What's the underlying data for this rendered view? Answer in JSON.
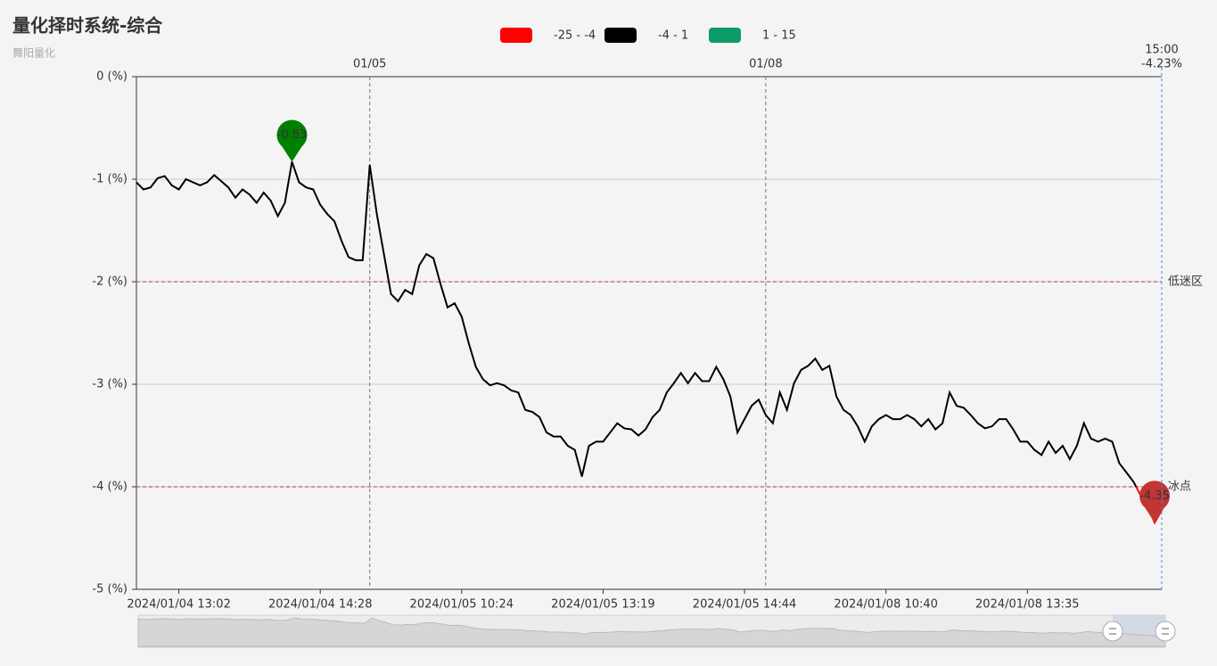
{
  "chart_data": {
    "type": "line",
    "title": "量化择时系统-综合",
    "subtitle": "舞阳量化",
    "pieces": [
      {
        "label": "-25 - -4",
        "min": -25,
        "max": -4,
        "color": "#ff0000"
      },
      {
        "label": "-4 - 1",
        "min": -4,
        "max": 1,
        "color": "#000000"
      },
      {
        "label": "1 - 15",
        "min": 1,
        "max": 15,
        "color": "#0c9a66"
      }
    ],
    "categories": [
      null,
      null,
      null,
      null,
      null,
      null,
      "2024/01/04 13:02",
      null,
      null,
      null,
      null,
      null,
      null,
      null,
      null,
      null,
      null,
      null,
      null,
      null,
      null,
      null,
      null,
      null,
      null,
      null,
      "2024/01/04 14:28",
      null,
      null,
      null,
      null,
      null,
      null,
      null,
      null,
      null,
      null,
      null,
      null,
      null,
      null,
      null,
      null,
      null,
      null,
      null,
      "2024/01/05 10:24",
      null,
      null,
      null,
      null,
      null,
      null,
      null,
      null,
      null,
      null,
      null,
      null,
      null,
      null,
      null,
      null,
      null,
      null,
      null,
      "2024/01/05 13:19",
      null,
      null,
      null,
      null,
      null,
      null,
      null,
      null,
      null,
      null,
      null,
      null,
      null,
      null,
      null,
      null,
      null,
      null,
      null,
      "2024/01/05 14:44",
      null,
      null,
      null,
      null,
      null,
      null,
      null,
      null,
      null,
      null,
      null,
      null,
      null,
      null,
      null,
      null,
      null,
      null,
      null,
      "2024/01/08 10:40",
      null,
      null,
      null,
      null,
      null,
      null,
      null,
      null,
      null,
      null,
      null,
      null,
      null,
      null,
      null,
      null,
      null,
      null,
      null,
      "2024/01/08 13:35",
      null,
      null,
      null,
      null,
      null,
      null,
      null,
      null,
      null,
      null,
      null,
      null,
      null,
      null,
      null,
      null,
      null,
      null,
      null
    ],
    "top_categories": [
      null,
      null,
      null,
      null,
      null,
      null,
      null,
      null,
      null,
      null,
      null,
      null,
      null,
      null,
      null,
      null,
      null,
      null,
      null,
      null,
      null,
      null,
      null,
      null,
      null,
      null,
      null,
      null,
      null,
      null,
      null,
      null,
      null,
      "01/05",
      null,
      null,
      null,
      null,
      null,
      null,
      null,
      null,
      null,
      null,
      null,
      null,
      null,
      null,
      null,
      null,
      null,
      null,
      null,
      null,
      null,
      null,
      null,
      null,
      null,
      null,
      null,
      null,
      null,
      null,
      null,
      null,
      null,
      null,
      null,
      null,
      null,
      null,
      null,
      null,
      null,
      null,
      null,
      null,
      null,
      null,
      null,
      null,
      null,
      null,
      null,
      null,
      null,
      null,
      null,
      "01/08",
      null,
      null,
      null,
      null,
      null,
      null,
      null,
      null,
      null,
      null,
      null,
      null,
      null,
      null,
      null,
      null,
      null,
      null,
      null,
      null,
      null,
      null,
      null,
      null,
      null,
      null,
      null,
      null,
      null,
      null,
      null,
      null,
      null,
      null,
      null,
      null,
      null,
      null,
      null,
      null,
      null,
      null,
      null,
      null,
      null,
      null,
      null,
      null,
      null,
      null,
      null,
      null,
      null,
      null,
      null,
      null
    ],
    "values": [
      -1.03,
      -1.1,
      -1.08,
      -0.99,
      -0.97,
      -1.06,
      -1.1,
      -1.0,
      -1.03,
      -1.06,
      -1.03,
      -0.96,
      -1.02,
      -1.08,
      -1.18,
      -1.1,
      -1.15,
      -1.23,
      -1.13,
      -1.21,
      -1.36,
      -1.23,
      -0.83,
      -1.03,
      -1.08,
      -1.1,
      -1.25,
      -1.34,
      -1.41,
      -1.6,
      -1.76,
      -1.79,
      -1.79,
      -0.86,
      -1.34,
      -1.73,
      -2.12,
      -2.19,
      -2.08,
      -2.12,
      -1.84,
      -1.73,
      -1.77,
      -2.02,
      -2.25,
      -2.21,
      -2.34,
      -2.6,
      -2.83,
      -2.95,
      -3.01,
      -2.99,
      -3.01,
      -3.06,
      -3.08,
      -3.25,
      -3.27,
      -3.32,
      -3.47,
      -3.51,
      -3.51,
      -3.6,
      -3.64,
      -3.9,
      -3.6,
      -3.56,
      -3.56,
      -3.47,
      -3.38,
      -3.43,
      -3.44,
      -3.5,
      -3.44,
      -3.32,
      -3.25,
      -3.08,
      -2.99,
      -2.89,
      -2.99,
      -2.89,
      -2.97,
      -2.97,
      -2.83,
      -2.95,
      -3.12,
      -3.47,
      -3.34,
      -3.21,
      -3.15,
      -3.3,
      -3.38,
      -3.08,
      -3.25,
      -2.99,
      -2.86,
      -2.82,
      -2.75,
      -2.86,
      -2.82,
      -3.12,
      -3.25,
      -3.3,
      -3.41,
      -3.56,
      -3.41,
      -3.34,
      -3.3,
      -3.34,
      -3.34,
      -3.3,
      -3.34,
      -3.41,
      -3.34,
      -3.44,
      -3.38,
      -3.08,
      -3.21,
      -3.23,
      -3.3,
      -3.38,
      -3.43,
      -3.41,
      -3.34,
      -3.34,
      -3.44,
      -3.56,
      -3.56,
      -3.64,
      -3.69,
      -3.56,
      -3.67,
      -3.6,
      -3.73,
      -3.6,
      -3.38,
      -3.53,
      -3.56,
      -3.53,
      -3.56,
      -3.77,
      -3.86,
      -3.95,
      -4.08,
      -4.19,
      -4.35,
      -4.23
    ],
    "value_labels": [
      null,
      null,
      null,
      null,
      null,
      null,
      null,
      null,
      null,
      null,
      null,
      null,
      null,
      null,
      null,
      null,
      null,
      null,
      null,
      null,
      null,
      null,
      "-0.83",
      null,
      null,
      null,
      null,
      null,
      null,
      null,
      null,
      null,
      null,
      null,
      null,
      null,
      null,
      null,
      null,
      null,
      null,
      null,
      null,
      null,
      null,
      null,
      null,
      null,
      null,
      null,
      null,
      null,
      null,
      null,
      null,
      null,
      null,
      null,
      null,
      null,
      null,
      null,
      null,
      null,
      null,
      null,
      null,
      null,
      null,
      null,
      null,
      null,
      null,
      null,
      null,
      null,
      null,
      null,
      null,
      null,
      null,
      null,
      null,
      null,
      null,
      null,
      null,
      null,
      null,
      null,
      null,
      null,
      null,
      null,
      null,
      null,
      null,
      null,
      null,
      null,
      null,
      null,
      null,
      null,
      null,
      null,
      null,
      null,
      null,
      null,
      null,
      null,
      null,
      null,
      null,
      null,
      null,
      null,
      null,
      null,
      null,
      null,
      null,
      null,
      null,
      null,
      null,
      null,
      null,
      null,
      null,
      null,
      null,
      null,
      null,
      null,
      null,
      null,
      null,
      null,
      null,
      null,
      null,
      null,
      "-4.35",
      null
    ],
    "max_marker_color": "#008000",
    "min_marker_color": "#c23531",
    "mark_lines": [
      {
        "value": -2,
        "label": "低迷区"
      },
      {
        "value": -4,
        "label": "冰点"
      }
    ],
    "pointer": {
      "time": "15:00",
      "label": "-4.23%"
    },
    "ylim": [
      -5,
      0
    ],
    "yticks": [
      {
        "value": 0,
        "label": "0 (%)"
      },
      {
        "value": -1,
        "label": "-1 (%)"
      },
      {
        "value": -2,
        "label": "-2 (%)"
      },
      {
        "value": -3,
        "label": "-3 (%)"
      },
      {
        "value": -4,
        "label": "-4 (%)"
      },
      {
        "value": -5,
        "label": "-5 (%)"
      }
    ],
    "grid": true
  }
}
